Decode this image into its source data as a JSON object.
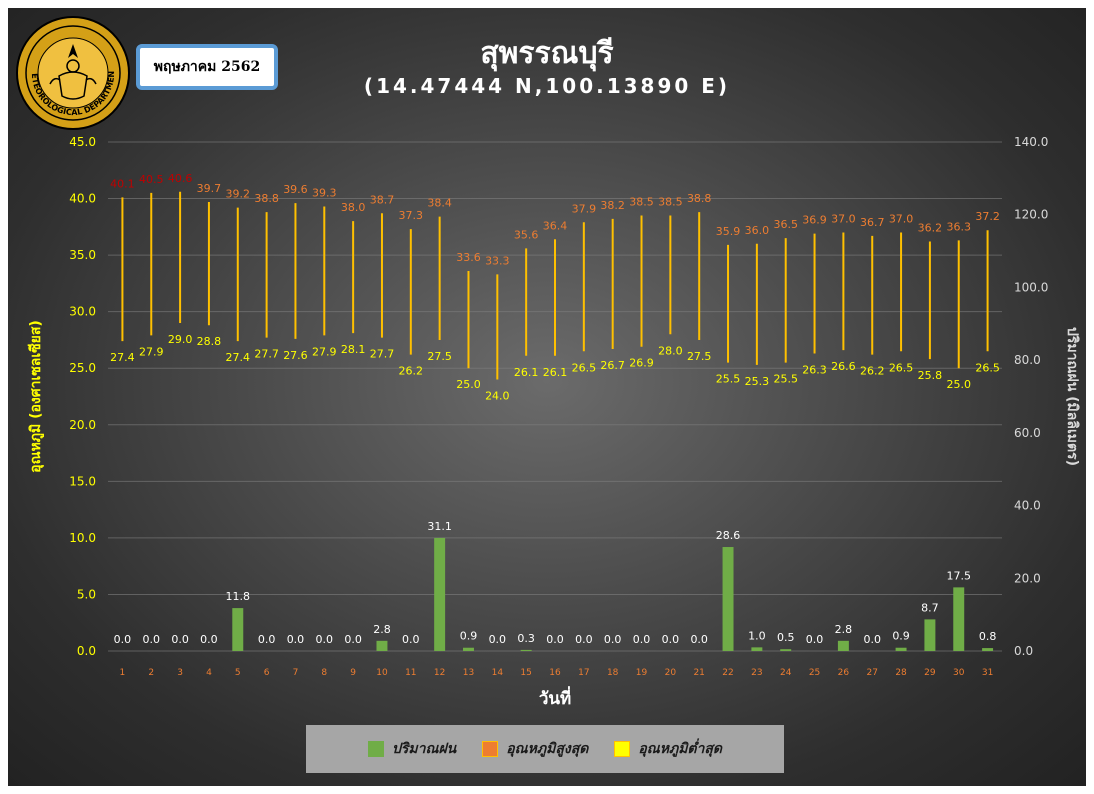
{
  "header": {
    "title": "สุพรรณบุรี",
    "subtitle": "(14.47444 N,100.13890 E)",
    "month": "พฤษภาคม 2562",
    "logo_icon": "meteorological-department-seal",
    "logo_text": "METEOROLOGICAL DEPARTMENT"
  },
  "colors": {
    "rain": "#70ad47",
    "tmax_line": "#ffc000",
    "tmax_label_hot": "#c00000",
    "tmax_label": "#ed7d31",
    "tmin_label": "#ffff00",
    "left_axis": "#ffff00",
    "right_axis": "#d9d9d9",
    "day_tick": "#ed7d31"
  },
  "chart_data": {
    "type": "bar",
    "xlabel": "วันที่",
    "ylabel_left": "อุณหภูมิ (องศาเซลเซียส)",
    "ylabel_right": "ปริมาณฝน (มิลลิเมตร)",
    "ylim_left": [
      0,
      45
    ],
    "yticks_left": [
      "0.0",
      "5.0",
      "10.0",
      "15.0",
      "20.0",
      "25.0",
      "30.0",
      "35.0",
      "40.0",
      "45.0"
    ],
    "ylim_right": [
      0,
      140
    ],
    "yticks_right": [
      "0.0",
      "20.0",
      "40.0",
      "60.0",
      "80.0",
      "100.0",
      "120.0",
      "140.0"
    ],
    "grid": true,
    "legend_position": "bottom",
    "categories": [
      "1",
      "2",
      "3",
      "4",
      "5",
      "6",
      "7",
      "8",
      "9",
      "10",
      "11",
      "12",
      "13",
      "14",
      "15",
      "16",
      "17",
      "18",
      "19",
      "20",
      "21",
      "22",
      "23",
      "24",
      "25",
      "26",
      "27",
      "28",
      "29",
      "30",
      "31"
    ],
    "series": [
      {
        "name": "ปริมาณฝน",
        "type": "bar",
        "axis": "right",
        "values": [
          0.0,
          0.0,
          0.0,
          0.0,
          11.8,
          0.0,
          0.0,
          0.0,
          0.0,
          2.8,
          0.0,
          31.1,
          0.9,
          0.0,
          0.3,
          0.0,
          0.0,
          0.0,
          0.0,
          0.0,
          0.0,
          28.6,
          1.0,
          0.5,
          0.0,
          2.8,
          0.0,
          0.9,
          8.7,
          17.5,
          0.8
        ]
      },
      {
        "name": "อุณหภูมิสูงสุด",
        "type": "high",
        "axis": "left",
        "values": [
          40.1,
          40.5,
          40.6,
          39.7,
          39.2,
          38.8,
          39.6,
          39.3,
          38.0,
          38.7,
          37.3,
          38.4,
          33.6,
          33.3,
          35.6,
          36.4,
          37.9,
          38.2,
          38.5,
          38.5,
          38.8,
          35.9,
          36.0,
          36.5,
          36.9,
          37.0,
          36.7,
          37.0,
          36.2,
          36.3,
          37.2
        ]
      },
      {
        "name": "อุณหภูมิต่ำสุด",
        "type": "low",
        "axis": "left",
        "values": [
          27.4,
          27.9,
          29.0,
          28.8,
          27.4,
          27.7,
          27.6,
          27.9,
          28.1,
          27.7,
          26.2,
          27.5,
          25.0,
          24.0,
          26.1,
          26.1,
          26.5,
          26.7,
          26.9,
          28.0,
          27.5,
          25.5,
          25.3,
          25.5,
          26.3,
          26.6,
          26.2,
          26.5,
          25.8,
          25.0,
          26.5
        ]
      }
    ]
  },
  "legend": {
    "rain": "ปริมาณฝน",
    "tmax": "อุณหภูมิสูงสุด",
    "tmin": "อุณหภูมิต่ำสุด"
  }
}
